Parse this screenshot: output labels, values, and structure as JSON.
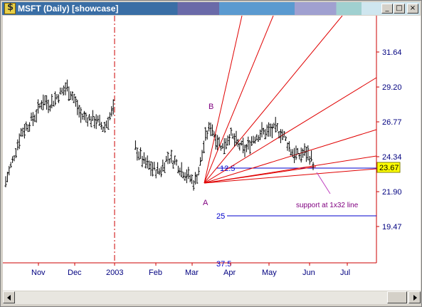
{
  "window": {
    "title": "MSFT (Daily) [showcase]",
    "minimize_glyph": "_",
    "maximize_glyph": "□",
    "close_glyph": "×"
  },
  "chart_data": {
    "type": "bar",
    "subtype": "OHLC price bars with Gann fan",
    "symbol": "MSFT",
    "period": "Daily",
    "x_labels": [
      "Nov",
      "Dec",
      "2003",
      "Feb",
      "Mar",
      "Apr",
      "May",
      "Jun",
      "Jul"
    ],
    "y_ticks": [
      31.64,
      29.2,
      26.77,
      24.34,
      21.9,
      19.47
    ],
    "y_range": [
      17.6,
      33.8
    ],
    "last_price": 23.67,
    "grid": false,
    "year_separator_label": "2003",
    "annotations": [
      {
        "text": "A",
        "role": "fan origin (low)"
      },
      {
        "text": "B",
        "role": "swing high"
      },
      {
        "text": "support at 1x32 line",
        "role": "callout"
      },
      {
        "text": "12.5",
        "role": "horizontal level"
      },
      {
        "text": "25",
        "role": "horizontal level"
      },
      {
        "text": "37.5",
        "role": "horizontal level"
      }
    ],
    "colors": {
      "price_bars": "#000000",
      "axis": "#cc0000",
      "tick_labels": "#000080",
      "gann_fan": "#e00000",
      "levels": "#0000cc",
      "annotations": "#800080",
      "last_price_box": "#ffff00"
    },
    "price_series": [
      {
        "date": "2002-10-14",
        "value": 22.6
      },
      {
        "date": "2002-10-20",
        "value": 24.2
      },
      {
        "date": "2002-10-26",
        "value": 26.0
      },
      {
        "date": "2002-11-01",
        "value": 26.6
      },
      {
        "date": "2002-11-07",
        "value": 27.3
      },
      {
        "date": "2002-11-12",
        "value": 28.3
      },
      {
        "date": "2002-11-18",
        "value": 28.0
      },
      {
        "date": "2002-11-24",
        "value": 28.6
      },
      {
        "date": "2002-12-01",
        "value": 29.2
      },
      {
        "date": "2002-12-06",
        "value": 28.5
      },
      {
        "date": "2002-12-12",
        "value": 27.2
      },
      {
        "date": "2002-12-18",
        "value": 27.0
      },
      {
        "date": "2002-12-24",
        "value": 26.9
      },
      {
        "date": "2002-12-30",
        "value": 26.3
      },
      {
        "date": "2003-01-04",
        "value": 27.2
      },
      {
        "date": "2003-01-09",
        "value": 28.0
      },
      {
        "date": "2003-01-13",
        "value": 28.2
      },
      {
        "date": "2003-01-18",
        "value": 26.4
      },
      {
        "date": "2003-01-24",
        "value": 24.9
      },
      {
        "date": "2003-01-30",
        "value": 24.0
      },
      {
        "date": "2003-02-06",
        "value": 23.5
      },
      {
        "date": "2003-02-12",
        "value": 23.3
      },
      {
        "date": "2003-02-18",
        "value": 24.3
      },
      {
        "date": "2003-02-24",
        "value": 24.0
      },
      {
        "date": "2003-03-01",
        "value": 23.4
      },
      {
        "date": "2003-03-06",
        "value": 23.0
      },
      {
        "date": "2003-03-11",
        "value": 22.5
      },
      {
        "date": "2003-03-15",
        "value": 23.6
      },
      {
        "date": "2003-03-20",
        "value": 25.8
      },
      {
        "date": "2003-03-24",
        "value": 26.5
      },
      {
        "date": "2003-03-28",
        "value": 25.6
      },
      {
        "date": "2003-04-02",
        "value": 25.0
      },
      {
        "date": "2003-04-08",
        "value": 25.9
      },
      {
        "date": "2003-04-14",
        "value": 25.2
      },
      {
        "date": "2003-04-20",
        "value": 24.8
      },
      {
        "date": "2003-04-26",
        "value": 25.6
      },
      {
        "date": "2003-05-02",
        "value": 26.0
      },
      {
        "date": "2003-05-08",
        "value": 26.1
      },
      {
        "date": "2003-05-14",
        "value": 26.3
      },
      {
        "date": "2003-05-20",
        "value": 25.8
      },
      {
        "date": "2003-05-26",
        "value": 24.7
      },
      {
        "date": "2003-06-01",
        "value": 24.4
      },
      {
        "date": "2003-06-06",
        "value": 24.7
      },
      {
        "date": "2003-06-10",
        "value": 24.3
      },
      {
        "date": "2003-06-12",
        "value": 23.9
      }
    ]
  }
}
